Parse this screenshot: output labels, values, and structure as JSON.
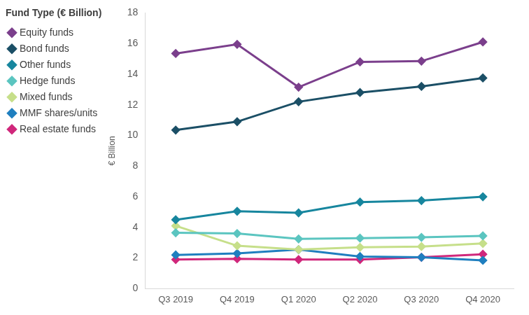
{
  "chart_data": {
    "type": "line",
    "legend_title": "Fund Type (€ Billion)",
    "y_label": "€ Billion",
    "categories": [
      "Q3 2019",
      "Q4 2019",
      "Q1 2020",
      "Q2 2020",
      "Q3 2020",
      "Q4 2020"
    ],
    "series": [
      {
        "name": "Equity funds",
        "color": "#7b3f8c",
        "values": [
          15.35,
          15.95,
          13.15,
          14.8,
          14.85,
          16.1
        ]
      },
      {
        "name": "Bond funds",
        "color": "#1b4f66",
        "values": [
          10.35,
          10.9,
          12.2,
          12.8,
          13.2,
          13.75
        ]
      },
      {
        "name": "Other funds",
        "color": "#17869e",
        "values": [
          4.5,
          5.05,
          4.95,
          5.65,
          5.75,
          6.0
        ]
      },
      {
        "name": "Hedge funds",
        "color": "#5bc5c0",
        "values": [
          3.65,
          3.6,
          3.25,
          3.3,
          3.35,
          3.45
        ]
      },
      {
        "name": "Mixed funds",
        "color": "#c6df8a",
        "values": [
          4.1,
          2.8,
          2.55,
          2.7,
          2.75,
          2.95
        ]
      },
      {
        "name": "MMF shares/units",
        "color": "#1f7fbf",
        "values": [
          2.2,
          2.3,
          2.55,
          2.1,
          2.05,
          1.85
        ]
      },
      {
        "name": "Real estate funds",
        "color": "#d0277b",
        "values": [
          1.9,
          1.95,
          1.9,
          1.9,
          2.05,
          2.25
        ]
      }
    ],
    "ylim": [
      0,
      18
    ],
    "yticks": [
      0,
      2,
      4,
      6,
      8,
      10,
      12,
      14,
      16,
      18
    ],
    "grid": false,
    "legend": "left",
    "marker": "diamond"
  }
}
